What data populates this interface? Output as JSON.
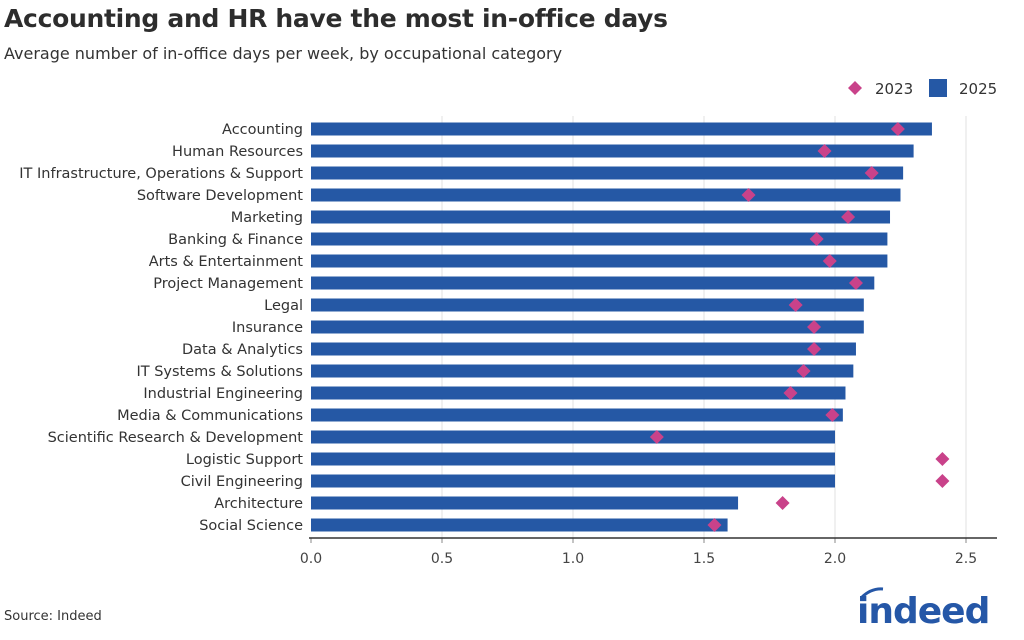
{
  "chart_data": {
    "type": "bar",
    "orientation": "horizontal",
    "title": "Accounting and HR have the most in-office days",
    "subtitle": "Average number of in-office days per week, by occupational category",
    "source": "Source: Indeed",
    "logo_text": "indeed",
    "categories": [
      "Accounting",
      "Human Resources",
      "IT Infrastructure, Operations & Support",
      "Software Development",
      "Marketing",
      "Banking & Finance",
      "Arts & Entertainment",
      "Project Management",
      "Legal",
      "Insurance",
      "Data & Analytics",
      "IT Systems & Solutions",
      "Industrial Engineering",
      "Media & Communications",
      "Scientific Research & Development",
      "Logistic Support",
      "Civil Engineering",
      "Architecture",
      "Social Science"
    ],
    "series": [
      {
        "name": "2025",
        "mark": "bar",
        "color": "#2558a5",
        "values": [
          2.37,
          2.3,
          2.26,
          2.25,
          2.21,
          2.2,
          2.2,
          2.15,
          2.11,
          2.11,
          2.08,
          2.07,
          2.04,
          2.03,
          2.0,
          2.0,
          2.0,
          1.63,
          1.59
        ]
      },
      {
        "name": "2023",
        "mark": "diamond",
        "color": "#c9428a",
        "values": [
          2.24,
          1.96,
          2.14,
          1.67,
          2.05,
          1.93,
          1.98,
          2.08,
          1.85,
          1.92,
          1.92,
          1.88,
          1.83,
          1.99,
          1.32,
          2.41,
          2.41,
          1.8,
          1.54
        ]
      }
    ],
    "legend_order": [
      1,
      0
    ],
    "legend_position": "top-right",
    "xlim": [
      0,
      2.62
    ],
    "xticks": [
      0,
      0.5,
      1,
      1.5,
      2,
      2.5
    ],
    "xtick_labels": [
      "0.0",
      "0.5",
      "1.0",
      "1.5",
      "2.0",
      "2.5"
    ],
    "grid": "vertical",
    "xlabel": "",
    "ylabel": ""
  }
}
